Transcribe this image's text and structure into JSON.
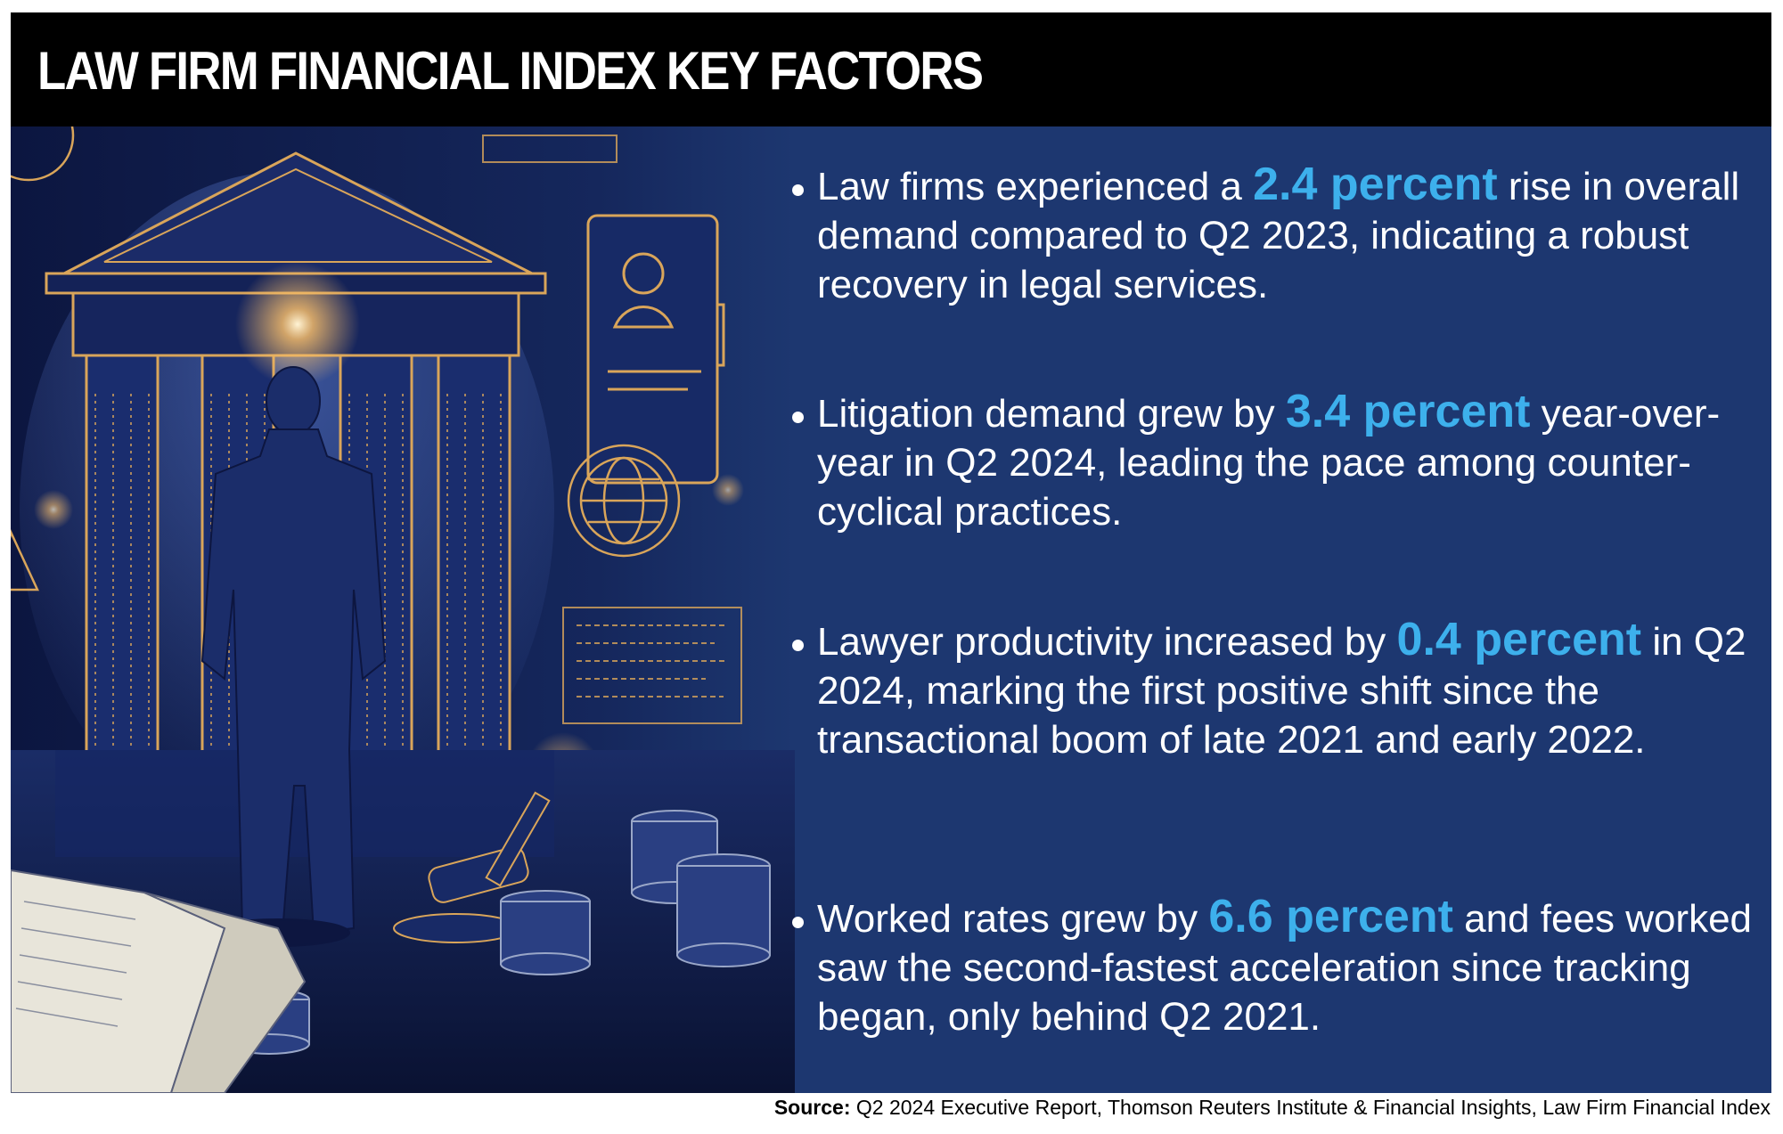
{
  "header": {
    "title": "LAW FIRM FINANCIAL INDEX KEY FACTORS"
  },
  "colors": {
    "header_bg": "#000000",
    "panel_bg": "#1d3770",
    "highlight": "#3db0ec",
    "gold": "#d9a55a"
  },
  "illustration": {
    "icons": [
      "bank-building-icon",
      "person-silhouette-icon",
      "id-card-icon",
      "globe-icon",
      "gavel-icon",
      "coin-stack-icon",
      "open-book-icon",
      "scales-icon"
    ]
  },
  "bullets": [
    {
      "pre": "Law firms experienced a ",
      "highlight": "2.4 percent",
      "post": " rise in overall demand compared to Q2 2023, indicating a robust recovery in legal services."
    },
    {
      "pre": "Litigation demand grew by ",
      "highlight": "3.4 percent",
      "post": " year-over-year in Q2 2024, leading the pace among counter-cyclical practices."
    },
    {
      "pre": "Lawyer productivity increased by ",
      "highlight": "0.4 percent",
      "post": " in Q2 2024, marking the first positive shift since the transactional boom of late 2021 and early 2022."
    },
    {
      "pre": "Worked rates grew by ",
      "highlight": "6.6 percent",
      "post": " and fees worked saw the second-fastest acceleration since tracking began, only behind Q2 2021."
    }
  ],
  "source": {
    "label": "Source:",
    "text": " Q2 2024 Executive Report, Thomson Reuters Institute & Financial Insights, Law Firm Financial Index"
  }
}
